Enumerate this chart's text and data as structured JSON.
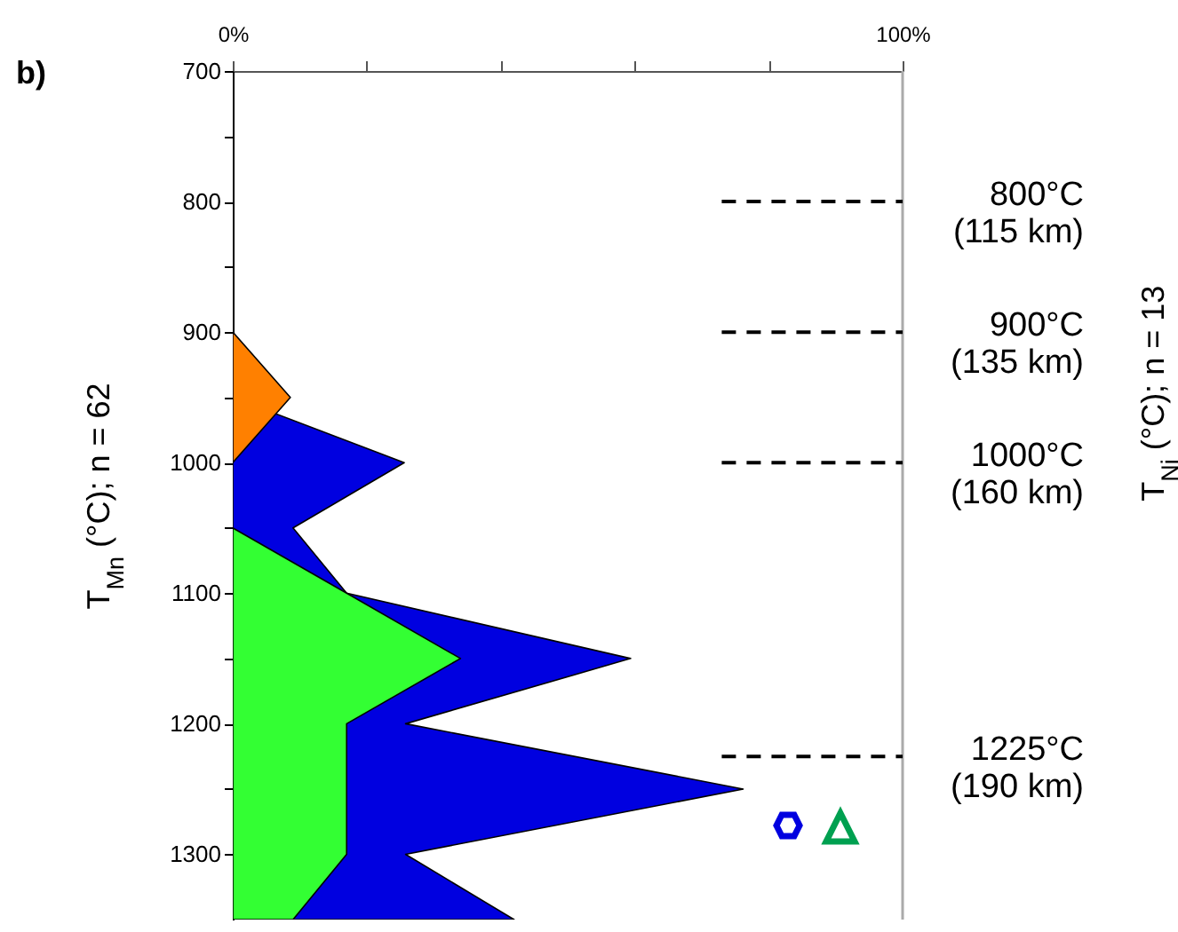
{
  "chart_data": {
    "type": "area",
    "title": "b)",
    "orientation": "horizontal",
    "ylabel": "T$_{Mn}$ (°C); n = 62",
    "annotations": [
      "T$_{Ni}$ (°C); n = 13"
    ],
    "series": [
      {
        "color": "#0000e0",
        "x": [
          950,
          1000,
          1050,
          1100,
          1150,
          1200,
          1250,
          1300,
          1350
        ],
        "values": [
          0,
          25.6,
          9,
          17,
          59.4,
          25.8,
          76.2,
          25.8,
          42
        ]
      },
      {
        "color": "#33ff33",
        "x": [
          1050,
          1100,
          1150,
          1200,
          1250,
          1300,
          1350
        ],
        "values": [
          0,
          17,
          34,
          17,
          17,
          17,
          9
        ]
      },
      {
        "color": "#ff8000",
        "x": [
          900,
          950,
          1000
        ],
        "values": [
          0,
          8.6,
          0
        ]
      }
    ],
    "xlim": [
      0,
      100
    ],
    "xticks": [
      {
        "value": 0,
        "label": "0%"
      },
      {
        "value": 20,
        "label": null
      },
      {
        "value": 40,
        "label": null
      },
      {
        "value": 60,
        "label": null
      },
      {
        "value": 80,
        "label": null
      },
      {
        "value": 100,
        "label": "100%"
      }
    ],
    "ylim": [
      1350,
      700
    ],
    "yticks": [
      700,
      {
        "value": 750,
        "label": null
      },
      800,
      {
        "value": 850,
        "label": null
      },
      900,
      {
        "value": 950,
        "label": null
      },
      1000,
      {
        "value": 1050,
        "label": null
      },
      1100,
      {
        "value": 1150,
        "label": null
      },
      1200,
      {
        "value": 1250,
        "label": null
      },
      1300
    ],
    "ref_lines": [
      {
        "axis": "y",
        "value": 800,
        "label": "800°C\n(115 km)",
        "color": "#000000",
        "line_style": "dashed"
      },
      {
        "axis": "y",
        "value": 900,
        "label": "900°C\n(135 km)",
        "color": "#000000",
        "line_style": "dashed"
      },
      {
        "axis": "y",
        "value": 1000,
        "label": "1000°C\n(160 km)",
        "color": "#000000",
        "line_style": "dashed"
      },
      {
        "axis": "y",
        "value": 1225,
        "label": "1225°C\n(190 km)",
        "color": "#000000",
        "line_style": "dashed"
      }
    ]
  }
}
